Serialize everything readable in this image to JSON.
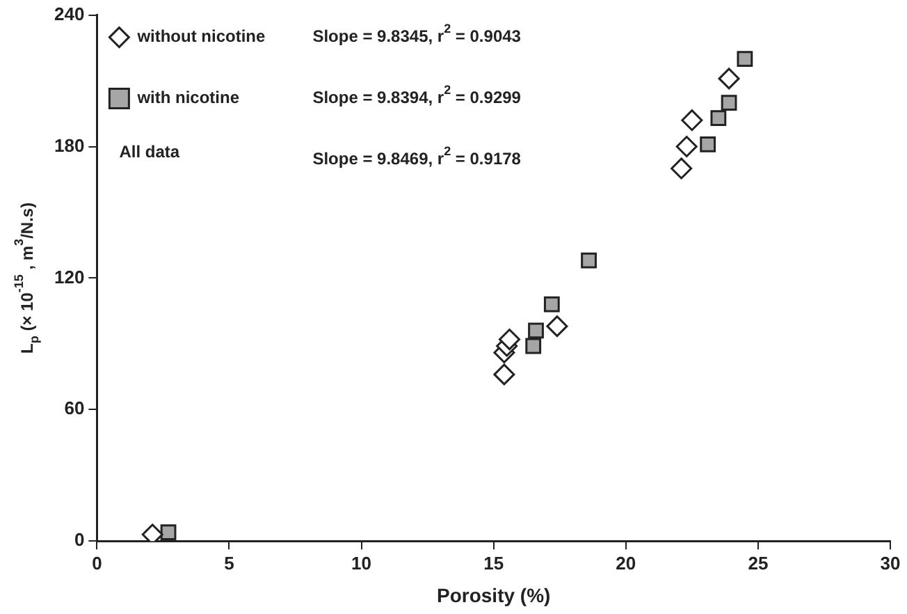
{
  "chart_data": {
    "type": "scatter",
    "xlabel": "Porosity (%)",
    "ylabel": "L$_{p}$ (× 10$^{-15}$ , m$^{3}$/N.s)",
    "xlim": [
      0,
      30
    ],
    "xticks": [
      0,
      5,
      10,
      15,
      20,
      25,
      30
    ],
    "ylim": [
      0,
      240
    ],
    "yticks": [
      0,
      60,
      120,
      180,
      240
    ],
    "grid": false,
    "legend": "top left",
    "series": [
      {
        "name": "without nicotine",
        "color": "#ffffff",
        "marker": "diamond",
        "x": [
          2.1,
          15.4,
          15.4,
          15.5,
          15.6,
          17.4,
          22.1,
          22.3,
          22.5,
          23.9
        ],
        "values": [
          3,
          76,
          86,
          89,
          92,
          98,
          170,
          180,
          192,
          211
        ]
      },
      {
        "name": "with nicotine",
        "color": "#a6a6a6",
        "marker": "square",
        "x": [
          2.7,
          16.5,
          16.6,
          17.2,
          18.6,
          23.1,
          23.5,
          23.9,
          24.5
        ],
        "values": [
          4,
          89,
          96,
          108,
          128,
          181,
          193,
          200,
          220
        ]
      }
    ],
    "annotations": [
      "Slope = 9.8345, r$^{2}$ = 0.9043",
      "Slope = 9.8394, r$^{2}$ = 0.9299",
      "All data",
      "Slope = 9.8469, r$^{2}$ = 0.9178"
    ]
  }
}
